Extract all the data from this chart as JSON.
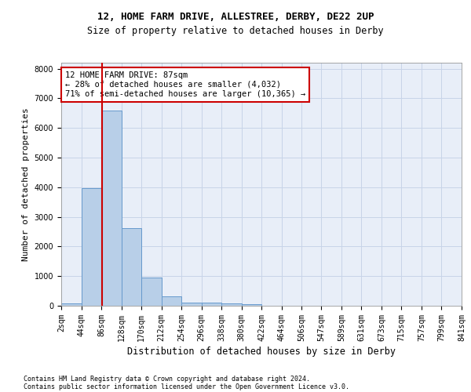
{
  "title_line1": "12, HOME FARM DRIVE, ALLESTREE, DERBY, DE22 2UP",
  "title_line2": "Size of property relative to detached houses in Derby",
  "xlabel": "Distribution of detached houses by size in Derby",
  "ylabel": "Number of detached properties",
  "footnote1": "Contains HM Land Registry data © Crown copyright and database right 2024.",
  "footnote2": "Contains public sector information licensed under the Open Government Licence v3.0.",
  "annotation_line1": "12 HOME FARM DRIVE: 87sqm",
  "annotation_line2": "← 28% of detached houses are smaller (4,032)",
  "annotation_line3": "71% of semi-detached houses are larger (10,365) →",
  "bar_edges": [
    2,
    44,
    86,
    128,
    170,
    212,
    254,
    296,
    338,
    380,
    422,
    464,
    506,
    547,
    589,
    631,
    673,
    715,
    757,
    799,
    841
  ],
  "bar_heights": [
    75,
    3980,
    6580,
    2620,
    960,
    305,
    115,
    105,
    80,
    60,
    0,
    0,
    0,
    0,
    0,
    0,
    0,
    0,
    0,
    0
  ],
  "bar_color": "#b8cfe8",
  "bar_edge_color": "#6699cc",
  "grid_color": "#c8d4e8",
  "background_color": "#e8eef8",
  "marker_x": 87,
  "marker_color": "#cc0000",
  "ylim": [
    0,
    8200
  ],
  "yticks": [
    0,
    1000,
    2000,
    3000,
    4000,
    5000,
    6000,
    7000,
    8000
  ],
  "xlim": [
    2,
    841
  ],
  "annotation_box_color": "#cc0000",
  "annotation_bg": "#ffffff",
  "title1_fontsize": 9,
  "title2_fontsize": 8.5,
  "ylabel_fontsize": 8,
  "xlabel_fontsize": 8.5,
  "tick_fontsize": 7,
  "footnote_fontsize": 6,
  "ann_fontsize": 7.5
}
